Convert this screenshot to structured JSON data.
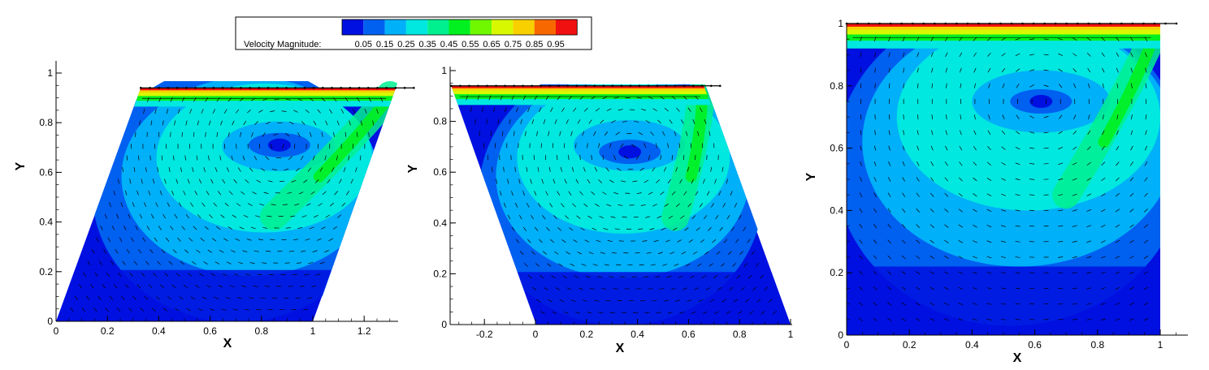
{
  "legend": {
    "title": "Velocity Magnitude:",
    "levels": [
      "0.05",
      "0.15",
      "0.25",
      "0.35",
      "0.45",
      "0.55",
      "0.65",
      "0.75",
      "0.85",
      "0.95"
    ],
    "colors": [
      "#0010e0",
      "#0060f0",
      "#00b0f8",
      "#00e8e0",
      "#00f090",
      "#00f020",
      "#70f800",
      "#d8f800",
      "#f8d000",
      "#f86800",
      "#f01010"
    ]
  },
  "chart_data": [
    {
      "type": "heatmap",
      "subtype": "contour-vector",
      "shape": "parallelogram-skewed-right",
      "xlabel": "X",
      "ylabel": "Y",
      "xlim": [
        0,
        1.33
      ],
      "ylim": [
        0,
        1.0
      ],
      "x_ticks": [
        "0",
        "0.2",
        "0.4",
        "0.6",
        "0.8",
        "1",
        "1.2"
      ],
      "y_ticks": [
        "0",
        "0.2",
        "0.4",
        "0.6",
        "0.8",
        "1"
      ],
      "domain_vertices": [
        [
          0,
          0
        ],
        [
          1.0,
          0
        ],
        [
          1.33,
          0.94
        ],
        [
          0.33,
          0.94
        ]
      ],
      "lid_velocity": 1.0,
      "vortex_center": [
        0.87,
        0.71
      ]
    },
    {
      "type": "heatmap",
      "subtype": "contour-vector",
      "shape": "parallelogram-skewed-left",
      "xlabel": "X",
      "ylabel": "Y",
      "xlim": [
        -0.33,
        1.0
      ],
      "ylim": [
        0,
        1.0
      ],
      "x_ticks": [
        "-0.2",
        "0",
        "0.2",
        "0.4",
        "0.6",
        "0.8",
        "1"
      ],
      "y_ticks": [
        "0",
        "0.2",
        "0.4",
        "0.6",
        "0.8",
        "1"
      ],
      "domain_vertices": [
        [
          0,
          0
        ],
        [
          1.0,
          0
        ],
        [
          0.66,
          0.94
        ],
        [
          -0.33,
          0.94
        ]
      ],
      "lid_velocity": 1.0,
      "vortex_center": [
        0.37,
        0.68
      ]
    },
    {
      "type": "heatmap",
      "subtype": "contour-vector",
      "shape": "square",
      "xlabel": "X",
      "ylabel": "Y",
      "xlim": [
        0,
        1.1
      ],
      "ylim": [
        0,
        1.0
      ],
      "x_ticks": [
        "0",
        "0.2",
        "0.4",
        "0.6",
        "0.8",
        "1"
      ],
      "y_ticks": [
        "0",
        "0.2",
        "0.4",
        "0.6",
        "0.8",
        "1"
      ],
      "domain_vertices": [
        [
          0,
          0
        ],
        [
          1.0,
          0
        ],
        [
          1.0,
          1.0
        ],
        [
          0,
          1.0
        ]
      ],
      "lid_velocity": 1.0,
      "vortex_center": [
        0.62,
        0.75
      ]
    }
  ]
}
